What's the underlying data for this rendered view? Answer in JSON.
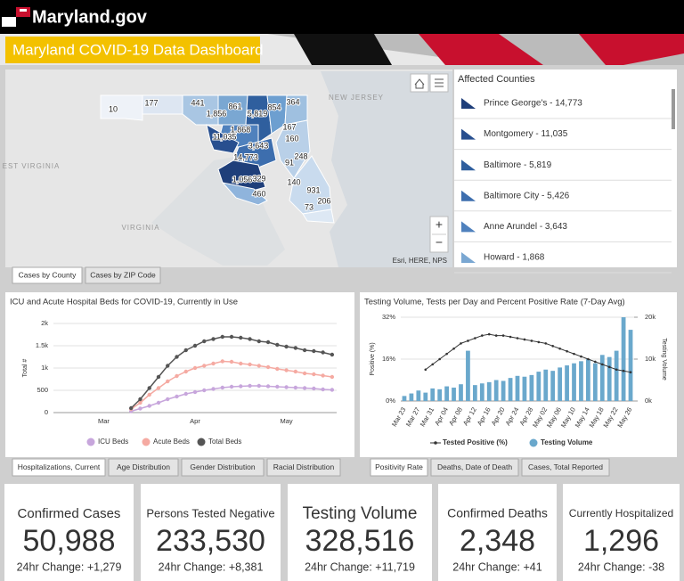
{
  "header": {
    "site": "Maryland.gov",
    "title": "Maryland COVID-19 Data Dashboard"
  },
  "map": {
    "regions": [
      "NEW JERSEY",
      "EST VIRGINIA",
      "VIRGINIA"
    ],
    "county_labels": [
      "10",
      "177",
      "441",
      "1,856",
      "861",
      "5,819",
      "854",
      "364",
      "1,868",
      "11,035",
      "160",
      "167",
      "3,643",
      "248",
      "14,773",
      "91",
      "1,056",
      "329",
      "140",
      "931",
      "460",
      "206",
      "73"
    ],
    "attribution": "Esri, HERE, NPS",
    "zoom": [
      "+",
      "−"
    ]
  },
  "counties": {
    "title": "Affected Counties",
    "items": [
      "Prince George's - 14,773",
      "Montgomery - 11,035",
      "Baltimore - 5,819",
      "Baltimore City - 5,426",
      "Anne Arundel - 3,643",
      "Howard - 1,868"
    ]
  },
  "map_tabs": [
    "Cases by County",
    "Cases by ZIP Code"
  ],
  "chart_data": [
    {
      "type": "line",
      "title": "ICU and Acute Hospital Beds for COVID-19, Currently in Use",
      "y_label": "Total #",
      "categories": [
        null,
        null,
        null,
        null,
        null,
        "Mar",
        null,
        null,
        null,
        null,
        null,
        null,
        null,
        null,
        null,
        "Apr",
        null,
        null,
        null,
        null,
        null,
        null,
        null,
        null,
        null,
        "May",
        null,
        null,
        null,
        null,
        null
      ],
      "ylim": [
        0,
        2000
      ],
      "yticks": [
        0,
        500,
        {
          "value": 1000,
          "label": "1k"
        },
        {
          "value": 1500,
          "label": "1.5k"
        },
        {
          "value": 2000,
          "label": "2k"
        }
      ],
      "grid": true,
      "series": [
        {
          "name": "ICU Beds",
          "color": "#c7a6dc",
          "values": [
            null,
            null,
            null,
            null,
            null,
            null,
            null,
            null,
            30,
            90,
            150,
            220,
            300,
            360,
            420,
            460,
            500,
            530,
            560,
            580,
            590,
            600,
            600,
            590,
            580,
            570,
            560,
            550,
            540,
            520,
            510
          ]
        },
        {
          "name": "Acute Beds",
          "color": "#f5aaa2",
          "values": [
            null,
            null,
            null,
            null,
            null,
            null,
            null,
            null,
            80,
            220,
            400,
            550,
            700,
            820,
            920,
            1000,
            1050,
            1100,
            1150,
            1140,
            1100,
            1080,
            1050,
            1020,
            980,
            950,
            920,
            880,
            860,
            830,
            800
          ]
        },
        {
          "name": "Total Beds",
          "color": "#555555",
          "values": [
            null,
            null,
            null,
            null,
            null,
            null,
            null,
            null,
            100,
            300,
            550,
            800,
            1050,
            1250,
            1400,
            1500,
            1600,
            1650,
            1700,
            1700,
            1680,
            1650,
            1600,
            1580,
            1520,
            1480,
            1450,
            1400,
            1380,
            1350,
            1300
          ]
        }
      ]
    },
    {
      "type": "combo",
      "title": "Testing Volume, Tests per Day and Percent Positive Rate (7-Day Avg)",
      "y_label": "Positive (%)",
      "y2_label": "Testing Volume",
      "categories": [
        "Mar 23",
        null,
        "Mar 27",
        null,
        "Mar 31",
        null,
        "Apr 04",
        null,
        "Apr 08",
        null,
        "Apr 12",
        null,
        "Apr 16",
        null,
        "Apr 20",
        null,
        "Apr 24",
        null,
        "Apr 28",
        null,
        "May 02",
        null,
        "May 06",
        null,
        "May 10",
        null,
        "May 14",
        null,
        "May 18",
        null,
        "May 22",
        null,
        "May 26"
      ],
      "ylim": [
        0,
        32
      ],
      "yticks": [
        {
          "value": 0,
          "label": "0%"
        },
        {
          "value": 16,
          "label": "16%"
        },
        {
          "value": 32,
          "label": "32%"
        }
      ],
      "y2lim": [
        0,
        20000
      ],
      "y2ticks": [
        {
          "value": 0,
          "label": "0k"
        },
        {
          "value": 10000,
          "label": "10k"
        },
        {
          "value": 20000,
          "label": "20k"
        }
      ],
      "grid": true,
      "series": [
        {
          "name": "Tested Positive (%)",
          "color": "#333333",
          "axis": "y",
          "values": [
            null,
            null,
            null,
            12,
            14,
            16,
            18,
            20,
            22,
            23,
            24,
            25,
            25.5,
            25,
            25,
            24.5,
            24,
            23.5,
            23,
            22.5,
            22,
            21,
            20,
            19,
            18,
            17,
            16,
            15,
            14,
            13,
            12,
            11.5,
            11
          ]
        },
        {
          "name": "Testing Volume",
          "color": "#6aa8cc",
          "axis": "y2",
          "values": [
            1200,
            1800,
            2500,
            2000,
            3000,
            2800,
            3500,
            3200,
            4000,
            12000,
            3800,
            4200,
            4500,
            5000,
            4800,
            5500,
            6000,
            5800,
            6200,
            7000,
            7500,
            7200,
            8000,
            8500,
            9000,
            9500,
            10000,
            9000,
            11000,
            10500,
            12000,
            20000,
            17000
          ]
        }
      ]
    }
  ],
  "chart_tabs": [
    [
      "Hospitalizations, Current",
      "Age Distribution",
      "Gender Distribution",
      "Racial Distribution"
    ],
    [
      "Positivity Rate",
      "Deaths, Date of Death",
      "Cases, Total Reported"
    ]
  ],
  "stats": [
    {
      "title": "Confirmed Cases",
      "value": "50,988",
      "change": "24hr Change: +1,279"
    },
    {
      "title": "Persons Tested Negative",
      "value": "233,530",
      "change": "24hr Change: +8,381"
    },
    {
      "title": "Testing Volume",
      "value": "328,516",
      "change": "24hr Change: +11,719"
    },
    {
      "title": "Confirmed Deaths",
      "value": "2,348",
      "change": "24hr Change: +41"
    },
    {
      "title": "Currently Hospitalized",
      "value": "1,296",
      "change": "24hr Change: -38"
    }
  ]
}
